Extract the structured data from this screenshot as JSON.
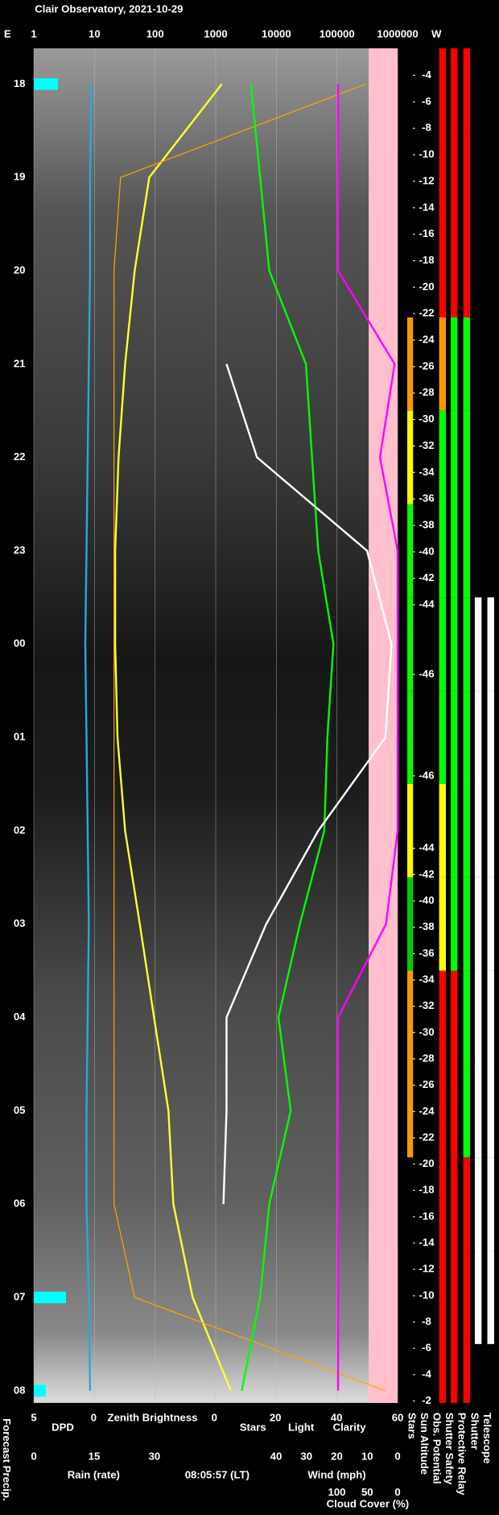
{
  "chart_data": {
    "type": "line",
    "title": "Clair Observatory, 2021-10-29",
    "east_label": "E",
    "west_label": "W",
    "time_label": "08:05:57 (LT)",
    "categories": [
      "18",
      "19",
      "20",
      "21",
      "22",
      "23",
      "00",
      "01",
      "02",
      "03",
      "04",
      "05",
      "06",
      "07",
      "08"
    ],
    "xscale": "log",
    "xlim": [
      1,
      1000000
    ],
    "xticks": [
      1,
      10,
      100,
      1000,
      10000,
      100000,
      1000000
    ],
    "grid": true,
    "axes": {
      "dpd": {
        "lim": [
          5,
          0
        ],
        "ticks": [
          5,
          0
        ]
      },
      "x2": {
        "lim": [
          0,
          60
        ],
        "ticks": [
          0,
          20,
          40,
          60
        ]
      },
      "rain": {
        "label": "Rain (rate)",
        "lim": [
          0,
          30
        ],
        "ticks": [
          0,
          15,
          30
        ],
        "color": "#29c4f0"
      },
      "wind": {
        "label": "Wind (mph)",
        "lim": [
          40,
          0
        ],
        "ticks": [
          40,
          30,
          20,
          10,
          0
        ],
        "color": "#f4a6b8"
      },
      "cloud": {
        "lim": [
          100,
          0
        ],
        "ticks": [
          100,
          50,
          0
        ]
      }
    },
    "series": [
      {
        "name": "Forecast Precip.",
        "kind": "bar",
        "axis": "rain",
        "color": "#00ffff",
        "values": [
          6,
          0,
          0,
          0,
          0,
          0,
          0,
          0,
          0,
          0,
          0,
          0,
          0,
          8,
          3
        ]
      },
      {
        "name": "DPD",
        "axis": "dpd",
        "color": "#29a8e0",
        "values": [
          0.2,
          0.3,
          0.3,
          0.4,
          0.5,
          0.6,
          0.7,
          0.6,
          0.5,
          0.4,
          0.5,
          0.6,
          0.6,
          0.4,
          0.3
        ]
      },
      {
        "name": "Zenith Brightness",
        "axis": "x",
        "color": "#ffff33",
        "values": [
          1260,
          80,
          46,
          32,
          25,
          22,
          22,
          24,
          32,
          56,
          96,
          166,
          200,
          417,
          1780
        ]
      },
      {
        "name": "Light",
        "axis": "x",
        "color": "#ffa500",
        "values": [
          300000,
          27,
          21,
          21,
          21,
          21,
          21,
          21,
          21,
          21,
          21,
          21,
          21,
          46,
          630000
        ]
      },
      {
        "name": "Clarity",
        "axis": "x2",
        "color": "#00ff00",
        "values": [
          12,
          15,
          18,
          30,
          32,
          34,
          39,
          37,
          36,
          28,
          21,
          25,
          18,
          15,
          9
        ]
      },
      {
        "name": "Stars",
        "axis": "x2",
        "color": "#ffffff",
        "values": [
          null,
          null,
          null,
          4,
          14,
          50,
          58,
          56,
          34,
          17,
          4,
          4,
          3,
          null,
          null
        ]
      },
      {
        "name": "Cloud Cover (%)",
        "axis": "cloud",
        "color": "#ff00ff",
        "values": [
          98,
          98,
          98,
          5,
          29,
          0,
          0,
          0,
          0,
          19,
          98,
          98,
          98,
          98,
          98
        ]
      }
    ],
    "sun_altitude": {
      "name": "Sun Altitude",
      "labels": [
        -4,
        -6,
        -8,
        -10,
        -12,
        -14,
        -16,
        -18,
        -20,
        -22,
        -24,
        -26,
        -28,
        -30,
        -32,
        -34,
        -36,
        -38,
        -40,
        -42,
        -44,
        -46,
        -46,
        -44,
        -42,
        -40,
        -38,
        -36,
        -34,
        -32,
        -30,
        -28,
        -26,
        -24,
        -22,
        -20,
        -18,
        -16,
        -14,
        -12,
        -10,
        -8,
        -6,
        -4,
        -2
      ]
    },
    "status": [
      {
        "name": "Stars",
        "colors": [
          "#000000",
          "#000000",
          "#000000",
          "#ff9900",
          "#ffff00",
          "#00ff00",
          "#00ff00",
          "#00ff00",
          "#ffff00",
          "#00cc00",
          "#ff9900",
          "#ff9900",
          "#000000",
          "#000000",
          "#000000"
        ]
      },
      {
        "name": "Obs. Potential",
        "colors": [
          "#ff0000",
          "#ff0000",
          "#ff0000",
          "#ff9900",
          "#00ff00",
          "#00ff00",
          "#00ff00",
          "#00ff00",
          "#ffff00",
          "#ffff00",
          "#ff0000",
          "#ff0000",
          "#ff0000",
          "#ff0000",
          "#ff0000"
        ]
      },
      {
        "name": "Shutter Safety",
        "colors": [
          "#ff0000",
          "#ff0000",
          "#ff0000",
          "#00ff00",
          "#00ff00",
          "#00ff00",
          "#00ff00",
          "#00ff00",
          "#00ff00",
          "#00ff00",
          "#ff0000",
          "#ff0000",
          "#ff0000",
          "#ff0000",
          "#ff0000"
        ]
      },
      {
        "name": "Protective Relay",
        "colors": [
          "#ff0000",
          "#ff0000",
          "#ff0000",
          "#00ff00",
          "#00ff00",
          "#00ff00",
          "#00ff00",
          "#00ff00",
          "#00ff00",
          "#00ff00",
          "#00ff00",
          "#00ff00",
          "#ff0000",
          "#ff0000",
          "#ff0000"
        ]
      },
      {
        "name": "Shutter",
        "colors": [
          "#000000",
          "#000000",
          "#000000",
          "#000000",
          "#000000",
          "#000000",
          "#ffffff",
          "#ffffff",
          "#ffffff",
          "#ffffff",
          "#ffffff",
          "#ffffff",
          "#ffffff",
          "#ffffff",
          "#000000"
        ]
      },
      {
        "name": "Telescope",
        "colors": [
          "#000000",
          "#000000",
          "#000000",
          "#000000",
          "#000000",
          "#000000",
          "#ffffff",
          "#ffffff",
          "#ffffff",
          "#ffffff",
          "#ffffff",
          "#ffffff",
          "#ffffff",
          "#ffffff",
          "#000000"
        ]
      }
    ]
  }
}
